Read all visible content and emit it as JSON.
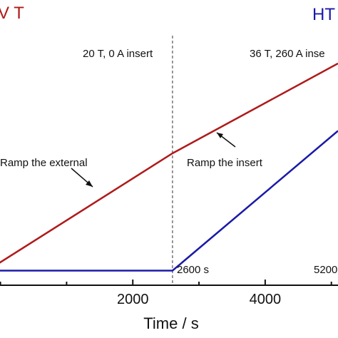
{
  "chart_data": {
    "type": "line",
    "title": "",
    "xlabel": "Time / s",
    "ylabel": "",
    "xlim": [
      -200,
      5100
    ],
    "x_ticks": [
      2000,
      4000
    ],
    "x_tick_labels": [
      "2000",
      "4000"
    ],
    "ylim": [
      0,
      1
    ],
    "grid": false,
    "corner_labels": [
      {
        "text": "V T",
        "color": "#b01a1a"
      },
      {
        "text": "HT",
        "color": "#1a1aa8"
      }
    ],
    "series": [
      {
        "color": "#b01a1a",
        "x": [
          -200,
          2600,
          5100
        ],
        "y": [
          0.03,
          0.5,
          0.86
        ]
      },
      {
        "color": "#1a1aa8",
        "x": [
          -200,
          2600,
          5100
        ],
        "y": [
          0.03,
          0.03,
          0.59
        ]
      }
    ],
    "vline": {
      "x": 2600
    },
    "annotations": [
      {
        "text": "20 T, 0 A insert"
      },
      {
        "text": "36 T, 260 A inse"
      },
      {
        "text": "Ramp the external"
      },
      {
        "text": "Ramp the insert"
      },
      {
        "text": "2600 s"
      },
      {
        "text": "5200"
      }
    ]
  }
}
